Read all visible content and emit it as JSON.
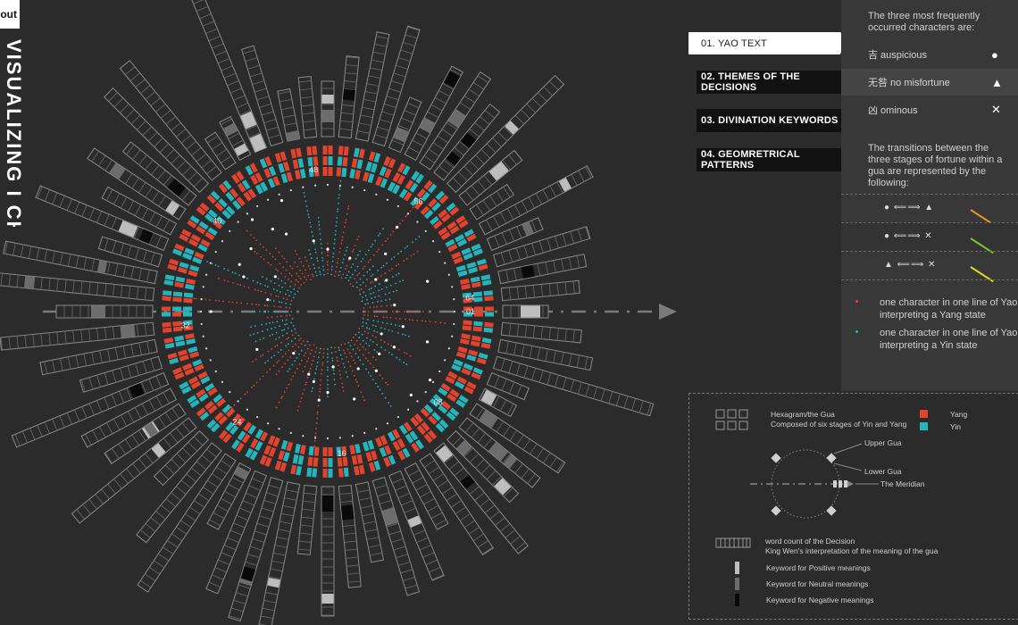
{
  "header": {
    "about_label": "About",
    "vertical_title": "VISUALIZING I CHING"
  },
  "nav": {
    "items": [
      {
        "label": "01. YAO TEXT",
        "active": true
      },
      {
        "label": "02. THEMES OF THE DECISIONS",
        "active": false
      },
      {
        "label": "03. DIVINATION KEYWORDS",
        "active": false
      },
      {
        "label": "04. GEOMRETRICAL PATTERNS",
        "active": false
      }
    ]
  },
  "side_panel": {
    "intro": "The three most frequently occurred characters are:",
    "fortunes": [
      {
        "label": "吉 auspicious",
        "symbol": "●"
      },
      {
        "label": "无咎 no misfortune",
        "symbol": "▲"
      },
      {
        "label": "凶 ominous",
        "symbol": "✕"
      }
    ],
    "transitions_intro": "The transitions between the three stages of fortune within a gua are represented by the following:",
    "transitions": [
      {
        "from": "●",
        "to": "▲",
        "color": "#e8961e"
      },
      {
        "from": "●",
        "to": "✕",
        "color": "#7ec626"
      },
      {
        "from": "▲",
        "to": "✕",
        "color": "#e6dd1e"
      }
    ]
  },
  "dot_legend": {
    "yang_text": "one character in one line of Yao Text interpreting a Yang state",
    "yin_text": "one character in one line of Yao Text interpreting a Yin state"
  },
  "legend": {
    "hexagram_title": "Hexagram/the Gua",
    "hexagram_sub": "Composed of six stages of Yin and Yang",
    "yang": "Yang",
    "yin": "Yin",
    "upper_gua": "Upper Gua",
    "lower_gua": "Lower Gua",
    "meridian": "The Meridian",
    "wordcount_1": "word count of the Decision",
    "wordcount_2": "King Wen's interpretation of the meaning of the gua",
    "kw_positive": "Keyword for Positive meanings",
    "kw_neutral": "Keyword for Neutral meanings",
    "kw_negative": "Keyword for Negative meanings"
  },
  "wheel": {
    "hexagram_count": 64,
    "labels": [
      "01",
      "08",
      "16",
      "24",
      "32",
      "40",
      "48",
      "56",
      "64"
    ]
  },
  "colors": {
    "yang": "#e0432e",
    "yin": "#24b4bc",
    "background": "#2b2b2b",
    "panel": "#383838"
  }
}
